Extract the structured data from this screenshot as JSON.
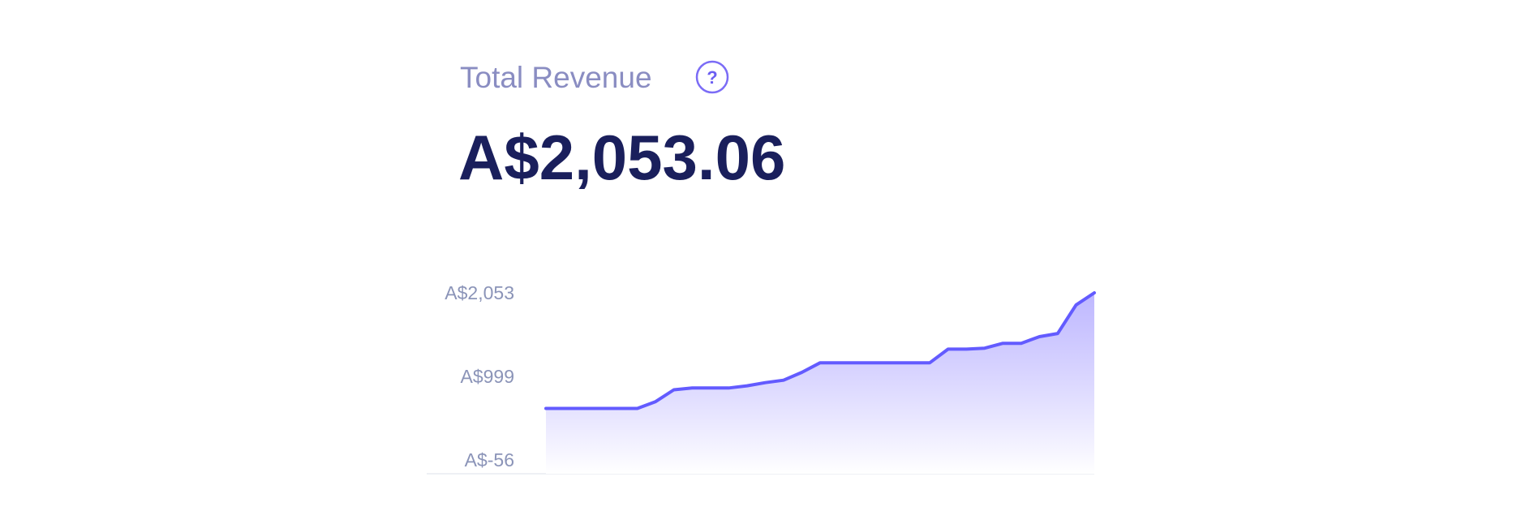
{
  "chart_data": {
    "type": "area",
    "title": "Total Revenue",
    "help_icon": "?",
    "headline": "A$2,053.06",
    "color": "#635bff",
    "ylim": [
      -56,
      2053
    ],
    "yticks": [
      {
        "value": -56,
        "label": "A$-56"
      },
      {
        "value": 999,
        "label": "A$999"
      },
      {
        "value": 2053,
        "label": "A$2,053"
      }
    ],
    "values": [
      594,
      594,
      594,
      594,
      594,
      594,
      680,
      830,
      852,
      852,
      852,
      880,
      920,
      950,
      1050,
      1171,
      1171,
      1171,
      1171,
      1171,
      1171,
      1171,
      1343,
      1343,
      1355,
      1416,
      1416,
      1500,
      1540,
      1900,
      2053
    ]
  }
}
